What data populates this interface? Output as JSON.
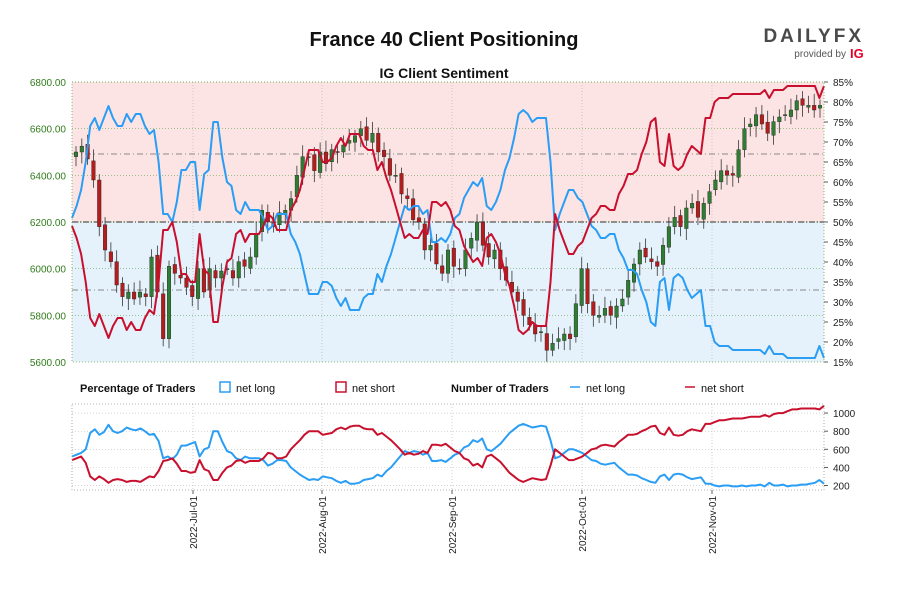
{
  "title": "France 40 Client Positioning",
  "subtitle": "IG Client Sentiment",
  "brand": {
    "name": "DAILYFX",
    "provided_by": "provided by",
    "ig": "IG",
    "ig_color": "#e4002b",
    "name_color": "#4a4a4a"
  },
  "colors": {
    "price_axis_label": "#2f7d1a",
    "net_long": "#2a9df4",
    "net_short": "#c8102e",
    "bull_candle": "#2e7d32",
    "bear_candle": "#b71c1c",
    "short_zone": "#fde4e4",
    "long_zone": "#e6f2fb"
  },
  "chart_data": [
    {
      "type": "candlestick",
      "title": "France 40 Client Positioning",
      "subtitle": "IG Client Sentiment",
      "left_axis": {
        "ticks": [
          "6800.00",
          "6600.00",
          "6400.00",
          "6200.00",
          "6000.00",
          "5800.00",
          "5600.00"
        ],
        "ylim": [
          5600,
          6800
        ]
      },
      "right_axis": {
        "ticks": [
          "85%",
          "80%",
          "75%",
          "70%",
          "65%",
          "60%",
          "55%",
          "50%",
          "45%",
          "40%",
          "35%",
          "30%",
          "25%",
          "20%",
          "15%"
        ],
        "ylim": [
          15,
          85
        ]
      },
      "x_axis": {
        "ticks": [
          "2022-Jul-01",
          "2022-Aug-01",
          "2022-Sep-01",
          "2022-Oct-01",
          "2022-Nov-01"
        ]
      },
      "close": [
        6500,
        6525,
        6470,
        6380,
        6180,
        6080,
        6030,
        5930,
        5880,
        5900,
        5870,
        5900,
        5880,
        6050,
        5900,
        5700,
        6010,
        5980,
        5960,
        5920,
        5880,
        6000,
        5900,
        6000,
        5960,
        5990,
        6000,
        5960,
        6030,
        6010,
        6050,
        6150,
        6250,
        6200,
        6180,
        6240,
        6250,
        6300,
        6400,
        6480,
        6480,
        6420,
        6500,
        6450,
        6510,
        6500,
        6530,
        6550,
        6570,
        6600,
        6550,
        6580,
        6500,
        6480,
        6400,
        6400,
        6320,
        6300,
        6210,
        6200,
        6080,
        6100,
        6020,
        5980,
        6080,
        6010,
        6000,
        6080,
        6130,
        6200,
        6100,
        6050,
        6080,
        6000,
        5950,
        5900,
        5860,
        5800,
        5760,
        5720,
        5730,
        5650,
        5680,
        5700,
        5720,
        5700,
        5850,
        6000,
        5850,
        5800,
        5800,
        5830,
        5800,
        5840,
        5870,
        5950,
        6020,
        6080,
        6050,
        6030,
        6010,
        6100,
        6180,
        6220,
        6180,
        6260,
        6280,
        6220,
        6280,
        6330,
        6380,
        6420,
        6400,
        6400,
        6510,
        6600,
        6620,
        6660,
        6620,
        6580,
        6630,
        6650,
        6660,
        6680,
        6720,
        6700,
        6700,
        6680,
        6700
      ],
      "series": [
        {
          "name": "net long",
          "values": [
            51,
            54,
            58,
            65,
            74,
            76,
            73,
            76,
            79,
            76,
            74,
            74,
            77,
            75,
            77,
            77,
            74,
            72,
            73,
            65,
            52,
            52,
            50,
            55,
            63,
            63,
            65,
            65,
            53,
            62,
            63,
            75,
            75,
            66,
            60,
            59,
            53,
            52,
            55,
            53,
            53,
            53,
            51,
            48,
            49,
            52,
            52,
            52,
            47,
            45,
            42,
            37,
            32,
            32,
            32,
            35,
            35,
            34,
            31,
            29,
            31,
            28,
            28,
            28,
            31,
            32,
            32,
            37,
            35,
            39,
            42,
            46,
            50,
            54,
            53,
            54,
            54,
            52,
            53,
            45,
            45,
            46,
            45,
            47,
            51,
            52,
            56,
            58,
            60,
            59,
            61,
            54,
            53,
            55,
            58,
            63,
            66,
            71,
            77,
            78,
            77,
            75,
            76,
            76,
            76,
            65,
            48,
            52,
            55,
            58,
            58,
            56,
            55,
            52,
            49,
            48,
            46,
            46,
            47,
            47,
            43,
            41,
            38,
            38,
            37,
            33,
            30,
            25,
            24,
            35,
            36,
            28,
            36,
            37,
            36,
            33,
            31,
            32,
            33,
            24,
            24,
            20,
            19,
            19,
            19,
            18,
            18,
            18,
            18,
            18,
            18,
            18,
            17,
            19,
            17,
            17,
            17,
            16,
            16,
            16,
            16,
            16,
            16,
            16,
            19,
            16
          ]
        },
        {
          "name": "net short",
          "values": [
            49,
            46,
            42,
            35,
            26,
            24,
            27,
            24,
            21,
            24,
            26,
            26,
            23,
            25,
            23,
            23,
            26,
            28,
            27,
            35,
            48,
            48,
            50,
            45,
            37,
            37,
            35,
            35,
            47,
            38,
            37,
            25,
            25,
            34,
            40,
            41,
            47,
            48,
            45,
            47,
            47,
            47,
            49,
            52,
            51,
            48,
            48,
            48,
            53,
            55,
            58,
            63,
            68,
            68,
            68,
            65,
            65,
            66,
            69,
            71,
            69,
            72,
            72,
            72,
            69,
            68,
            68,
            63,
            65,
            61,
            58,
            54,
            50,
            46,
            47,
            46,
            46,
            48,
            47,
            55,
            55,
            54,
            55,
            53,
            49,
            48,
            44,
            42,
            40,
            41,
            39,
            46,
            47,
            45,
            42,
            37,
            34,
            29,
            23,
            22,
            23,
            25,
            24,
            24,
            24,
            35,
            52,
            48,
            45,
            42,
            42,
            44,
            45,
            48,
            51,
            52,
            54,
            54,
            53,
            53,
            57,
            59,
            62,
            62,
            63,
            67,
            70,
            75,
            76,
            65,
            64,
            72,
            64,
            63,
            64,
            67,
            69,
            68,
            67,
            76,
            76,
            80,
            81,
            81,
            81,
            82,
            82,
            82,
            82,
            82,
            82,
            82,
            83,
            81,
            83,
            83,
            83,
            84,
            84,
            84,
            84,
            84,
            84,
            84,
            81,
            84
          ]
        }
      ]
    },
    {
      "type": "line",
      "y_axis": {
        "ticks": [
          "1000",
          "800",
          "600",
          "400",
          "200"
        ],
        "ylim": [
          150,
          1100
        ]
      },
      "legend": {
        "percentage_heading": "Percentage of Traders",
        "number_heading": "Number of Traders",
        "entries": [
          "net long",
          "net short",
          "net long",
          "net short"
        ]
      },
      "series": [
        {
          "name": "net long",
          "values": [
            520,
            540,
            560,
            600,
            780,
            820,
            760,
            790,
            870,
            800,
            780,
            800,
            840,
            820,
            810,
            830,
            800,
            760,
            770,
            690,
            500,
            520,
            490,
            540,
            640,
            640,
            660,
            680,
            520,
            600,
            620,
            800,
            800,
            680,
            580,
            560,
            500,
            480,
            520,
            500,
            500,
            500,
            480,
            420,
            440,
            480,
            480,
            470,
            400,
            360,
            320,
            290,
            260,
            270,
            260,
            300,
            290,
            280,
            250,
            230,
            250,
            220,
            220,
            230,
            260,
            270,
            280,
            320,
            300,
            360,
            400,
            460,
            520,
            580,
            560,
            580,
            570,
            540,
            560,
            470,
            470,
            480,
            460,
            500,
            540,
            560,
            620,
            640,
            700,
            680,
            720,
            600,
            580,
            620,
            660,
            720,
            780,
            820,
            860,
            880,
            860,
            840,
            850,
            860,
            850,
            700,
            500,
            520,
            560,
            600,
            600,
            580,
            560,
            520,
            480,
            470,
            440,
            430,
            440,
            450,
            400,
            360,
            320,
            320,
            310,
            280,
            260,
            240,
            230,
            300,
            320,
            260,
            320,
            330,
            320,
            290,
            270,
            280,
            290,
            220,
            220,
            200,
            190,
            200,
            200,
            190,
            190,
            200,
            190,
            200,
            200,
            210,
            190,
            230,
            200,
            200,
            210,
            190,
            200,
            200,
            210,
            210,
            220,
            230,
            260,
            220
          ]
        },
        {
          "name": "net short",
          "values": [
            480,
            500,
            520,
            450,
            300,
            260,
            300,
            270,
            230,
            260,
            270,
            260,
            240,
            250,
            250,
            240,
            270,
            300,
            290,
            360,
            470,
            480,
            500,
            440,
            360,
            360,
            340,
            350,
            480,
            380,
            360,
            260,
            260,
            340,
            400,
            420,
            470,
            480,
            450,
            470,
            470,
            470,
            500,
            560,
            550,
            500,
            500,
            520,
            600,
            650,
            700,
            760,
            800,
            800,
            800,
            760,
            770,
            780,
            820,
            840,
            820,
            850,
            860,
            860,
            830,
            820,
            820,
            760,
            780,
            740,
            700,
            650,
            600,
            540,
            560,
            540,
            550,
            580,
            560,
            650,
            650,
            640,
            660,
            620,
            580,
            560,
            500,
            480,
            420,
            440,
            400,
            520,
            540,
            500,
            460,
            400,
            340,
            300,
            260,
            240,
            260,
            280,
            270,
            260,
            270,
            420,
            600,
            560,
            520,
            480,
            480,
            500,
            520,
            560,
            600,
            610,
            640,
            650,
            640,
            630,
            680,
            720,
            760,
            760,
            770,
            800,
            820,
            850,
            860,
            780,
            760,
            840,
            760,
            750,
            760,
            800,
            820,
            810,
            800,
            880,
            880,
            900,
            920,
            920,
            930,
            940,
            940,
            940,
            950,
            960,
            960,
            960,
            980,
            960,
            990,
            1000,
            1000,
            1020,
            1040,
            1040,
            1050,
            1050,
            1050,
            1050,
            1040,
            1080
          ]
        }
      ]
    }
  ]
}
